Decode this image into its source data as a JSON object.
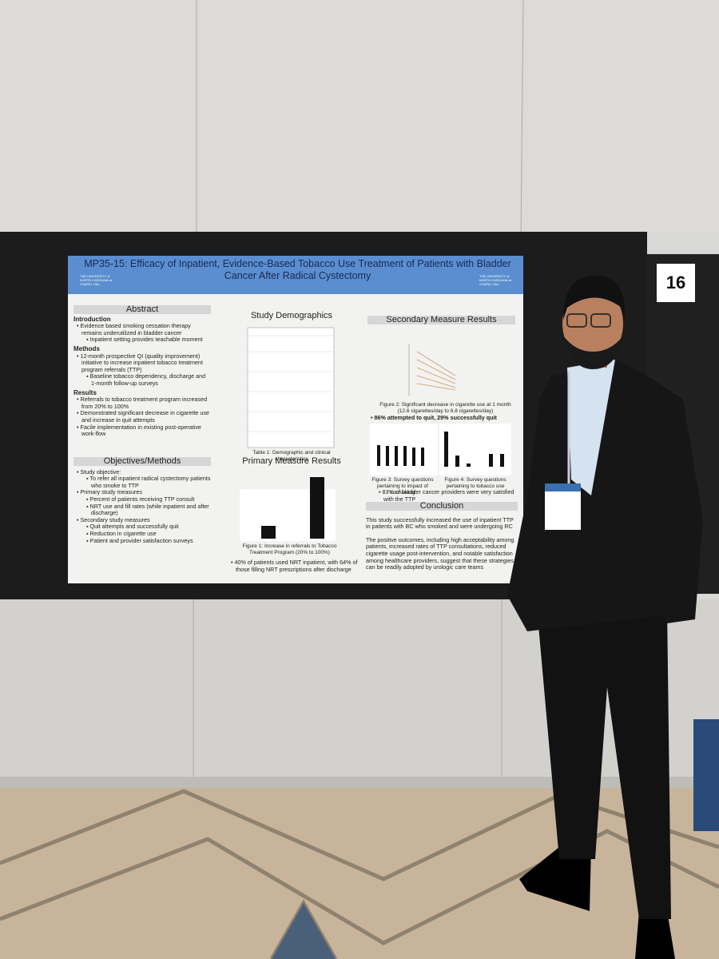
{
  "board_number": "16",
  "poster": {
    "title": "MP35-15: Efficacy of Inpatient, Evidence-Based Tobacco Use Treatment of Patients with Bladder Cancer After Radical Cystectomy",
    "logo_text": "THE UNIVERSITY of NORTH CAROLINA at CHAPEL HILL",
    "abstract": {
      "heading": "Abstract",
      "sections": [
        {
          "heading": "Introduction",
          "items": [
            {
              "text": "Evidence based smoking cessation therapy remains underutilized in bladder cancer",
              "sub": [
                "Inpatient setting provides teachable moment"
              ]
            }
          ]
        },
        {
          "heading": "Methods",
          "items": [
            {
              "text": "12-month prospective QI (quality improvement) initiative to increase inpatient tobacco treatment program referrals (TTP)",
              "sub": [
                "Baseline tobacco dependency, discharge and 1-month follow-up surveys"
              ]
            }
          ]
        },
        {
          "heading": "Results",
          "items": [
            {
              "text": "Referrals to tobacco treatment program increased from 20% to 100%",
              "sub": []
            },
            {
              "text": "Demonstrated significant decrease in cigarette use and increase in quit attempts",
              "sub": []
            },
            {
              "text": "Facile implementation in existing post-operative work-flow",
              "sub": []
            }
          ]
        }
      ]
    },
    "objectives": {
      "heading": "Objectives/Methods",
      "items": [
        {
          "text": "Study objective:",
          "sub": [
            "To refer all inpatient radical cystectomy patients who smoke to TTP"
          ]
        },
        {
          "text": "Primary study measures",
          "sub": [
            "Percent of patients receiving TTP consult",
            "NRT use and fill rates (while inpatient and after discharge)"
          ]
        },
        {
          "text": "Secondary study measures",
          "sub": [
            "Quit attempts and successfully quit",
            "Reduction in cigarette use",
            "Patient and provider satisfaction surveys"
          ]
        }
      ]
    },
    "demographics": {
      "heading": "Study Demographics",
      "caption": "Table 1: Demographic and clinical characteristics"
    },
    "primary": {
      "heading": "Primary Measure Results",
      "caption": "Figure 1: Increase in referrals to Tobacco Treatment Program (20% to 100%)",
      "bullet": "40% of patients used NRT inpatient, with 64% of those filling NRT prescriptions after discharge"
    },
    "secondary": {
      "heading": "Secondary Measure Results",
      "fig2_caption": "Figure 2: Significant decrease in cigarette use at 1 month (12.6 cigarettes/day to 6.8 cigarettes/day)",
      "bullet1": "86% attempted to quit, 29% successfully quit",
      "fig3_caption": "Figure 3: Survey questions pertaining to impact of counseling",
      "fig4_caption": "Figure 4: Survey questions pertaining to tobacco use",
      "bullet2": "83% of bladder cancer providers were very satisfied with the TTP"
    },
    "conclusion": {
      "heading": "Conclusion",
      "paragraphs": [
        "This study successfully increased the use of inpatient TTP in patients with BC who smoked and were undergoing RC",
        "The positive outcomes, including high acceptability among patients, increased rates of TTP consultations, reduced cigarette usage post-intervention, and notable satisfaction among healthcare providers, suggest that these strategies can be readily adopted by urologic care teams"
      ]
    }
  }
}
